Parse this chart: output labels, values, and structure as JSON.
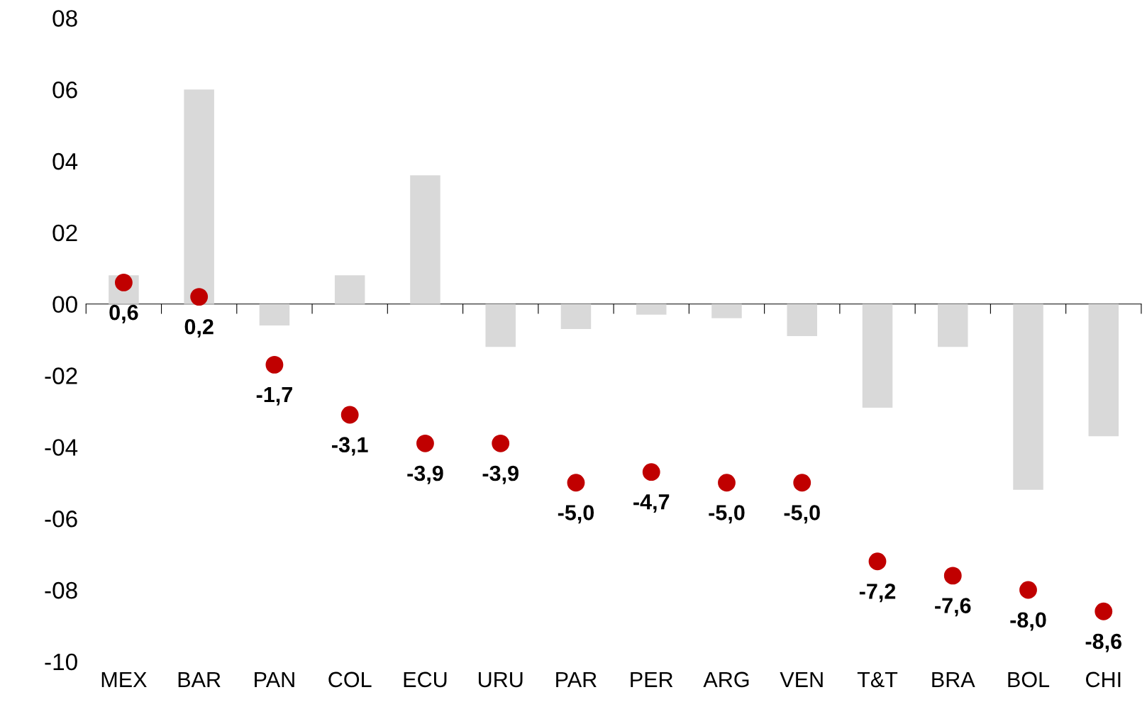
{
  "chart_data": {
    "type": "bar",
    "categories": [
      "MEX",
      "BAR",
      "PAN",
      "COL",
      "ECU",
      "URU",
      "PAR",
      "PER",
      "ARG",
      "VEN",
      "T&T",
      "BRA",
      "BOL",
      "CHI"
    ],
    "ylim": [
      -10,
      8
    ],
    "yticks": [
      {
        "value": 8,
        "label": "08"
      },
      {
        "value": 6,
        "label": "06"
      },
      {
        "value": 4,
        "label": "04"
      },
      {
        "value": 2,
        "label": "02"
      },
      {
        "value": 0,
        "label": "00"
      },
      {
        "value": -2,
        "label": "-02"
      },
      {
        "value": -4,
        "label": "-04"
      },
      {
        "value": -6,
        "label": "-06"
      },
      {
        "value": -8,
        "label": "-08"
      },
      {
        "value": -10,
        "label": "-10"
      }
    ],
    "legend": false,
    "series": [
      {
        "color": "#d9d9d9",
        "values": [
          0.8,
          6.0,
          -0.6,
          0.8,
          3.6,
          -1.2,
          -0.7,
          -0.3,
          -0.4,
          -0.9,
          -2.9,
          -1.2,
          -5.2,
          -3.7
        ]
      },
      {
        "type": "scatter",
        "color": "#c00000",
        "marker": "circle",
        "x": [
          "MEX",
          "BAR",
          "PAN",
          "COL",
          "ECU",
          "URU",
          "PAR",
          "PER",
          "ARG",
          "VEN",
          "T&T",
          "BRA",
          "BOL",
          "CHI"
        ],
        "values": [
          0.6,
          0.2,
          -1.7,
          -3.1,
          -3.9,
          -3.9,
          -5.0,
          -4.7,
          -5.0,
          -5.0,
          -7.2,
          -7.6,
          -8.0,
          -8.6
        ],
        "value_labels": [
          "0,6",
          "0,2",
          "-1,7",
          "-3,1",
          "-3,9",
          "-3,9",
          "-5,0",
          "-4,7",
          "-5,0",
          "-5,0",
          "-7,2",
          "-7,6",
          "-8,0",
          "-8,6"
        ]
      }
    ]
  }
}
